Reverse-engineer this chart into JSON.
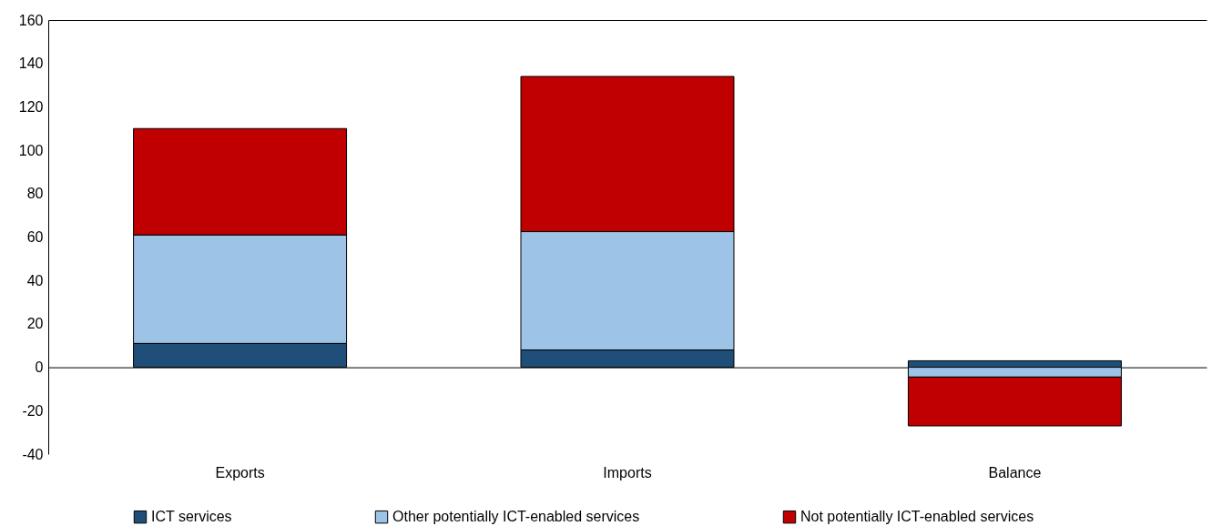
{
  "chart_data": {
    "type": "bar",
    "stacked": true,
    "categories": [
      "Exports",
      "Imports",
      "Balance"
    ],
    "series": [
      {
        "name": "ICT services",
        "color": "#1f4e79",
        "values": [
          11,
          8,
          3
        ]
      },
      {
        "name": "Other potentially ICT-enabled services",
        "color": "#9dc3e6",
        "values": [
          50,
          54.5,
          -4.5
        ]
      },
      {
        "name": "Not potentially ICT-enabled services",
        "color": "#c00000",
        "values": [
          49,
          71.5,
          -22.5
        ]
      }
    ],
    "ylim": [
      -40,
      160
    ],
    "yticks": [
      -40,
      -20,
      0,
      20,
      40,
      60,
      80,
      100,
      120,
      140,
      160
    ],
    "legend": "bottom"
  }
}
